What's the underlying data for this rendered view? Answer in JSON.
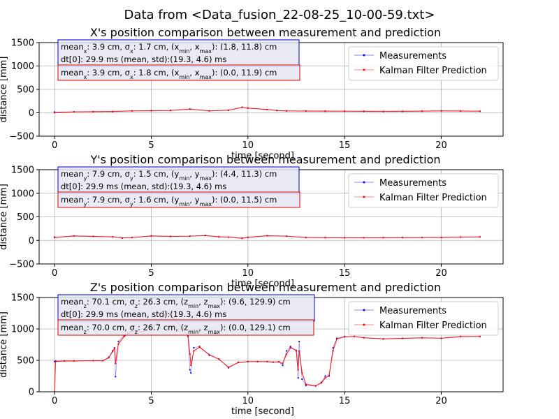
{
  "figure": {
    "suptitle": "Data from <Data_fusion_22-08-25_10-00-59.txt>"
  },
  "chart_data": [
    {
      "type": "line",
      "title": "X's position comparison between measurement and prediction",
      "xlabel": "time [second]",
      "ylabel": "distance [mm]",
      "xlim": [
        -0.8,
        23.2
      ],
      "ylim": [
        -500,
        1500
      ],
      "xticks": [
        0,
        5,
        10,
        15,
        20
      ],
      "yticks": [
        -500,
        0,
        500,
        1000,
        1500
      ],
      "grid": true,
      "legend_position": "upper right",
      "legend": [
        "Measurements",
        "Kalman Filter Prediction"
      ],
      "annotations": [
        {
          "text": "mean_x: 3.9 cm, σ_x: 1.7 cm, (x_min, x_max): (1.8, 11.8) cm\ndt[0]: 29.9 ms (mean, std):(19.3, 4.6) ms",
          "color": "#0000cc"
        },
        {
          "text": "mean_x: 3.9 cm, σ_x: 1.8 cm, (x_min, x_max): (0.0, 11.9) cm",
          "color": "#dd0000"
        }
      ],
      "series": [
        {
          "name": "Measurements",
          "color": "#0000ff",
          "x": [
            0,
            1,
            2,
            3,
            4,
            5,
            6,
            7,
            8,
            9,
            9.7,
            10,
            11,
            11.5,
            12,
            13,
            14,
            15,
            16,
            17,
            18,
            19,
            20,
            21,
            22
          ],
          "y": [
            18,
            22,
            24,
            28,
            40,
            45,
            50,
            80,
            40,
            55,
            118,
            100,
            70,
            48,
            40,
            38,
            36,
            34,
            32,
            30,
            32,
            36,
            40,
            38,
            34
          ]
        },
        {
          "name": "Kalman Filter Prediction",
          "color": "#ff0000",
          "x": [
            0,
            1,
            2,
            3,
            4,
            5,
            6,
            7,
            8,
            9,
            9.7,
            10,
            11,
            11.5,
            12,
            13,
            14,
            15,
            16,
            17,
            18,
            19,
            20,
            21,
            22
          ],
          "y": [
            0,
            20,
            24,
            28,
            40,
            45,
            50,
            78,
            42,
            55,
            115,
            100,
            70,
            50,
            40,
            38,
            36,
            34,
            32,
            30,
            32,
            36,
            40,
            38,
            34
          ]
        }
      ]
    },
    {
      "type": "line",
      "title": "Y's position comparison between measurement and prediction",
      "xlabel": "time [second]",
      "ylabel": "distance [mm]",
      "xlim": [
        -0.8,
        23.2
      ],
      "ylim": [
        -500,
        1500
      ],
      "xticks": [
        0,
        5,
        10,
        15,
        20
      ],
      "yticks": [
        -500,
        0,
        500,
        1000,
        1500
      ],
      "grid": true,
      "legend_position": "upper right",
      "legend": [
        "Measurements",
        "Kalman Filter Prediction"
      ],
      "annotations": [
        {
          "text": "mean_y: 7.9 cm, σ_y: 1.5 cm, (y_min, y_max): (4.4, 11.3) cm\ndt[0]: 29.9 ms (mean, std):(19.3, 4.6) ms",
          "color": "#0000cc"
        },
        {
          "text": "mean_y: 7.9 cm, σ_y: 1.6 cm, (y_min, y_max): (0.0, 11.5) cm",
          "color": "#dd0000"
        }
      ],
      "series": [
        {
          "name": "Measurements",
          "color": "#0000ff",
          "x": [
            0,
            1,
            2,
            3,
            3.5,
            4,
            5,
            6,
            7,
            7.8,
            8.5,
            9,
            9.7,
            10,
            11,
            12,
            13,
            14,
            15,
            16,
            17,
            18,
            19,
            20,
            21,
            22
          ],
          "y": [
            70,
            95,
            85,
            75,
            50,
            60,
            95,
            85,
            90,
            105,
            75,
            70,
            45,
            65,
            100,
            90,
            60,
            58,
            55,
            55,
            56,
            58,
            60,
            62,
            70,
            75
          ]
        },
        {
          "name": "Kalman Filter Prediction",
          "color": "#ff0000",
          "x": [
            0,
            1,
            2,
            3,
            3.5,
            4,
            5,
            6,
            7,
            7.8,
            8.5,
            9,
            9.7,
            10,
            11,
            12,
            13,
            14,
            15,
            16,
            17,
            18,
            19,
            20,
            21,
            22
          ],
          "y": [
            60,
            94,
            85,
            75,
            52,
            60,
            94,
            85,
            90,
            103,
            76,
            70,
            47,
            65,
            99,
            90,
            61,
            58,
            55,
            55,
            56,
            58,
            60,
            62,
            70,
            74
          ]
        }
      ]
    },
    {
      "type": "line",
      "title": "Z's position comparison between measurement and prediction",
      "xlabel": "time [second]",
      "ylabel": "distance [mm]",
      "xlim": [
        -0.8,
        23.2
      ],
      "ylim": [
        0,
        1500
      ],
      "xticks": [
        0,
        5,
        10,
        15,
        20
      ],
      "yticks": [
        0,
        500,
        1000,
        1500
      ],
      "grid": true,
      "legend_position": "upper right",
      "legend": [
        "Measurements",
        "Kalman Filter Prediction"
      ],
      "annotations": [
        {
          "text": "mean_z: 70.1 cm, σ_z: 26.3 cm, (z_min, z_max): (9.6, 129.9) cm\ndt[0]: 29.9 ms (mean, std):(19.3, 4.6) ms",
          "color": "#0000cc"
        },
        {
          "text": "mean_z: 70.0 cm, σ_z: 26.7 cm, (z_min, z_max): (0.0, 129.1) cm",
          "color": "#dd0000"
        }
      ],
      "series": [
        {
          "name": "Measurements",
          "color": "#0000ff",
          "x": [
            0,
            0.05,
            0.5,
            1,
            2,
            2.5,
            2.8,
            3.0,
            3.1,
            3.15,
            3.3,
            3.6,
            4,
            4.5,
            5,
            5.5,
            5.8,
            6.2,
            6.6,
            6.9,
            7.0,
            7.05,
            7.2,
            7.5,
            8,
            8.5,
            9,
            9.5,
            10,
            10.5,
            11,
            11.3,
            11.6,
            11.8,
            12,
            12.2,
            12.5,
            12.6,
            12.65,
            12.8,
            13,
            13.5,
            13.8,
            14,
            14.2,
            14.4,
            14.6,
            15,
            15.5,
            16,
            17,
            18,
            19,
            20,
            21,
            22
          ],
          "y": [
            480,
            490,
            490,
            490,
            495,
            495,
            550,
            650,
            700,
            240,
            800,
            900,
            970,
            950,
            1000,
            1150,
            1280,
            1150,
            1000,
            880,
            350,
            300,
            700,
            720,
            580,
            520,
            380,
            470,
            480,
            480,
            480,
            470,
            480,
            420,
            650,
            720,
            650,
            220,
            800,
            200,
            100,
            90,
            150,
            250,
            250,
            700,
            850,
            880,
            880,
            860,
            840,
            850,
            860,
            850,
            880,
            880
          ]
        },
        {
          "name": "Kalman Filter Prediction",
          "color": "#ff0000",
          "x": [
            0,
            0.05,
            0.5,
            1,
            2,
            2.5,
            2.8,
            3.0,
            3.1,
            3.15,
            3.3,
            3.6,
            4,
            4.5,
            5,
            5.5,
            5.8,
            6.2,
            6.6,
            6.9,
            7.0,
            7.05,
            7.2,
            7.5,
            8,
            8.5,
            9,
            9.5,
            10,
            10.5,
            11,
            11.3,
            11.6,
            11.8,
            12,
            12.2,
            12.5,
            12.6,
            12.65,
            12.8,
            13,
            13.5,
            13.8,
            14,
            14.2,
            14.4,
            14.6,
            15,
            15.5,
            16,
            17,
            18,
            19,
            20,
            21,
            22
          ],
          "y": [
            0,
            480,
            490,
            490,
            495,
            495,
            540,
            640,
            690,
            450,
            760,
            880,
            960,
            950,
            1000,
            1150,
            1270,
            1160,
            1000,
            890,
            600,
            420,
            650,
            710,
            590,
            520,
            390,
            465,
            480,
            480,
            480,
            472,
            475,
            450,
            600,
            700,
            660,
            350,
            650,
            300,
            120,
            95,
            140,
            220,
            260,
            650,
            840,
            875,
            880,
            860,
            842,
            850,
            858,
            852,
            878,
            880
          ]
        }
      ]
    }
  ]
}
